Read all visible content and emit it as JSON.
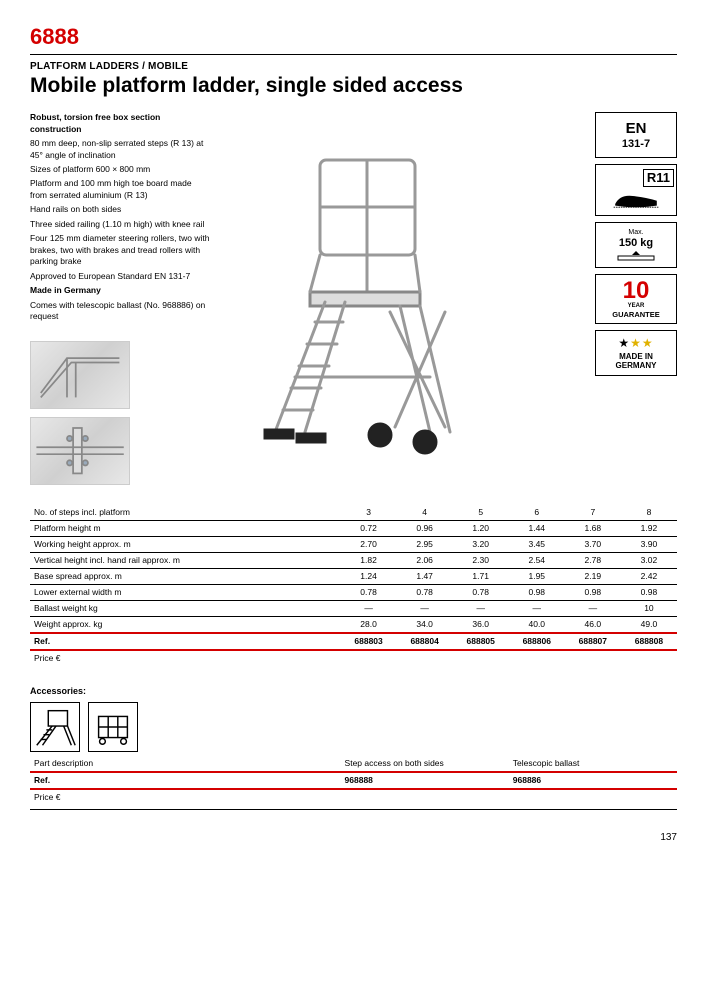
{
  "header": {
    "product_code": "6888",
    "subtitle": "PLATFORM LADDERS / MOBILE",
    "title": "Mobile platform ladder, single sided access"
  },
  "description": [
    {
      "bold": true,
      "text": "Robust, torsion free box section construction"
    },
    {
      "bold": false,
      "text": "80 mm deep, non-slip serrated steps (R 13) at 45° angle of inclination"
    },
    {
      "bold": false,
      "text": "Sizes of platform 600 × 800 mm"
    },
    {
      "bold": false,
      "text": "Platform and 100 mm high toe board made from serrated aluminium (R 13)"
    },
    {
      "bold": false,
      "text": "Hand rails on both sides"
    },
    {
      "bold": false,
      "text": "Three sided railing (1.10 m high) with knee rail"
    },
    {
      "bold": false,
      "text": "Four 125 mm diameter steering rollers, two with brakes, two with brakes and tread rollers with parking brake"
    },
    {
      "bold": false,
      "text": "Approved to European Standard EN 131-7"
    },
    {
      "bold": true,
      "text": "Made in Germany"
    },
    {
      "bold": false,
      "text": "Comes with telescopic ballast (No. 968886) on request"
    }
  ],
  "certifications": {
    "en": {
      "line1": "EN",
      "line2": "131-7"
    },
    "r11": {
      "label": "R11"
    },
    "max": {
      "line1": "Max.",
      "line2": "150 kg"
    },
    "guarantee": {
      "num": "10",
      "year": "YEAR",
      "word": "GUARANTEE"
    },
    "made": {
      "stars_black": "★",
      "stars_gold": "★★",
      "line1": "MADE IN",
      "line2": "GERMANY"
    }
  },
  "specs": {
    "columns": [
      "",
      "",
      "",
      "",
      "",
      ""
    ],
    "rows": [
      {
        "label": "No. of steps incl. platform",
        "values": [
          "3",
          "4",
          "5",
          "6",
          "7",
          "8"
        ]
      },
      {
        "label": "Platform height m",
        "values": [
          "0.72",
          "0.96",
          "1.20",
          "1.44",
          "1.68",
          "1.92"
        ]
      },
      {
        "label": "Working height approx. m",
        "values": [
          "2.70",
          "2.95",
          "3.20",
          "3.45",
          "3.70",
          "3.90"
        ]
      },
      {
        "label": "Vertical height incl. hand rail approx. m",
        "values": [
          "1.82",
          "2.06",
          "2.30",
          "2.54",
          "2.78",
          "3.02"
        ]
      },
      {
        "label": "Base spread approx. m",
        "values": [
          "1.24",
          "1.47",
          "1.71",
          "1.95",
          "2.19",
          "2.42"
        ]
      },
      {
        "label": "Lower external width m",
        "values": [
          "0.78",
          "0.78",
          "0.78",
          "0.98",
          "0.98",
          "0.98"
        ]
      },
      {
        "label": "Ballast weight kg",
        "values": [
          "—",
          "—",
          "—",
          "—",
          "—",
          "10"
        ]
      },
      {
        "label": "Weight approx. kg",
        "values": [
          "28.0",
          "34.0",
          "36.0",
          "40.0",
          "46.0",
          "49.0"
        ]
      }
    ],
    "ref_row": {
      "label": "Ref.",
      "values": [
        "688803",
        "688804",
        "688805",
        "688806",
        "688807",
        "688808"
      ]
    },
    "price_row": {
      "label": "Price €",
      "values": [
        "",
        "",
        "",
        "",
        "",
        ""
      ]
    }
  },
  "accessories": {
    "heading": "Accessories:",
    "rows": [
      {
        "label": "Part description",
        "c1": "Step access on both sides",
        "c2": "Telescopic ballast"
      },
      {
        "label": "Ref.",
        "c1": "968888",
        "c2": "968886"
      },
      {
        "label": "Price €",
        "c1": "",
        "c2": ""
      }
    ]
  },
  "page_number": "137",
  "colors": {
    "accent": "#d40000",
    "gold": "#e0b100",
    "rule": "#000000"
  }
}
